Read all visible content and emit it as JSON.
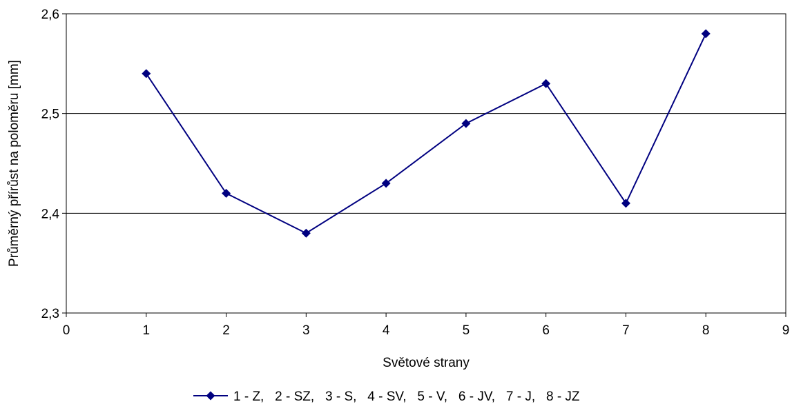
{
  "chart_data": {
    "type": "line",
    "title": "",
    "xlabel": "Světové strany",
    "ylabel": "Průměrný přírůst na poloměru [mm]",
    "xlim": [
      0,
      9
    ],
    "ylim": [
      2.3,
      2.6
    ],
    "x_ticks": [
      "0",
      "1",
      "2",
      "3",
      "4",
      "5",
      "6",
      "7",
      "8",
      "9"
    ],
    "y_ticks": [
      "2,3",
      "2,4",
      "2,5",
      "2,6"
    ],
    "grid": "horizontal",
    "legend_position": "bottom",
    "series": [
      {
        "name": "1 - Z,   2 - SZ,   3 - S,   4 - SV,   5 - V,   6 - JV,   7 - J,   8 - JZ",
        "color": "#000080",
        "marker": "diamond",
        "x": [
          1,
          2,
          3,
          4,
          5,
          6,
          7,
          8
        ],
        "values": [
          2.54,
          2.42,
          2.38,
          2.43,
          2.49,
          2.53,
          2.41,
          2.58
        ]
      }
    ]
  }
}
